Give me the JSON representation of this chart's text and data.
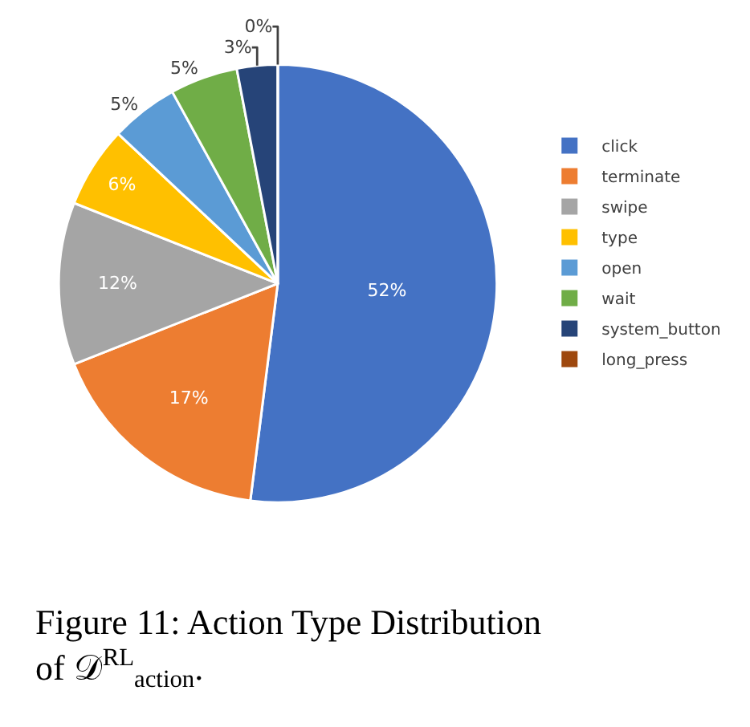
{
  "chart_data": {
    "type": "pie",
    "categories": [
      "click",
      "terminate",
      "swipe",
      "type",
      "open",
      "wait",
      "system_button",
      "long_press"
    ],
    "values": [
      52,
      17,
      12,
      6,
      5,
      5,
      3,
      0
    ],
    "colors": [
      "#4472c4",
      "#ed7d31",
      "#a5a5a5",
      "#ffc000",
      "#5b9bd5",
      "#70ad47",
      "#264478",
      "#9e480e"
    ],
    "value_labels": [
      "52%",
      "17%",
      "12%",
      "6%",
      "5%",
      "5%",
      "3%",
      "0%"
    ],
    "legend": "right",
    "annotations": [
      "Figure 11: Action Type Distribution of 𝒟$^{RL}$$_{action}$."
    ]
  }
}
